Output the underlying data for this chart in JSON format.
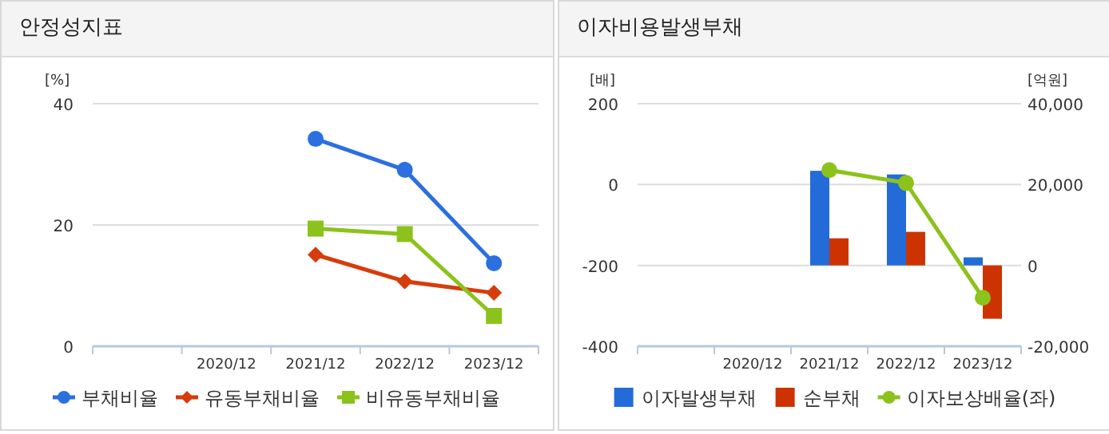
{
  "chart_data": [
    {
      "type": "line",
      "title": "안정성지표",
      "ylabel": "[%]",
      "categories": [
        null,
        "2020/12",
        "2021/12",
        "2022/12",
        "2023/12"
      ],
      "ylim": [
        0,
        40
      ],
      "yticks": [
        0,
        20,
        40
      ],
      "grid": "y",
      "legend": "bottom",
      "series": [
        {
          "name": "부채비율",
          "color": "#2b6fe0",
          "marker": "circle",
          "values": [
            null,
            null,
            34.2,
            29.1,
            13.7
          ]
        },
        {
          "name": "유동부채비율",
          "color": "#d63c0c",
          "marker": "diamond",
          "values": [
            null,
            null,
            15.1,
            10.7,
            8.8
          ]
        },
        {
          "name": "비유동부채비율",
          "color": "#8cc21c",
          "marker": "square",
          "values": [
            null,
            null,
            19.4,
            18.5,
            5.0
          ]
        }
      ]
    },
    {
      "type": "bar",
      "title": "이자비용발생부채",
      "ylabel": "[배]",
      "y2label": "[억원]",
      "categories": [
        null,
        "2020/12",
        "2021/12",
        "2022/12",
        "2023/12"
      ],
      "ylim": [
        -400,
        200
      ],
      "yticks": [
        -400,
        -200,
        0,
        200
      ],
      "y2lim": [
        -20000,
        40000
      ],
      "y2ticks": [
        {
          "value": -20000,
          "label": "-20,000"
        },
        0,
        {
          "value": 20000,
          "label": "20,000"
        },
        {
          "value": 40000,
          "label": "40,000"
        }
      ],
      "grid": "y",
      "legend": "bottom",
      "series": [
        {
          "name": "이자발생부채",
          "color": "#236bd8",
          "axis": "y2",
          "values": [
            null,
            null,
            23400,
            22500,
            2000
          ]
        },
        {
          "name": "순부채",
          "color": "#cc3300",
          "axis": "y2",
          "values": [
            null,
            null,
            6700,
            8300,
            -13200
          ]
        },
        {
          "name": "이자보상배율(좌)",
          "type": "line",
          "marker": "circle",
          "color": "#8cc21c",
          "values": [
            null,
            null,
            35.7,
            4,
            -280
          ]
        }
      ]
    }
  ]
}
